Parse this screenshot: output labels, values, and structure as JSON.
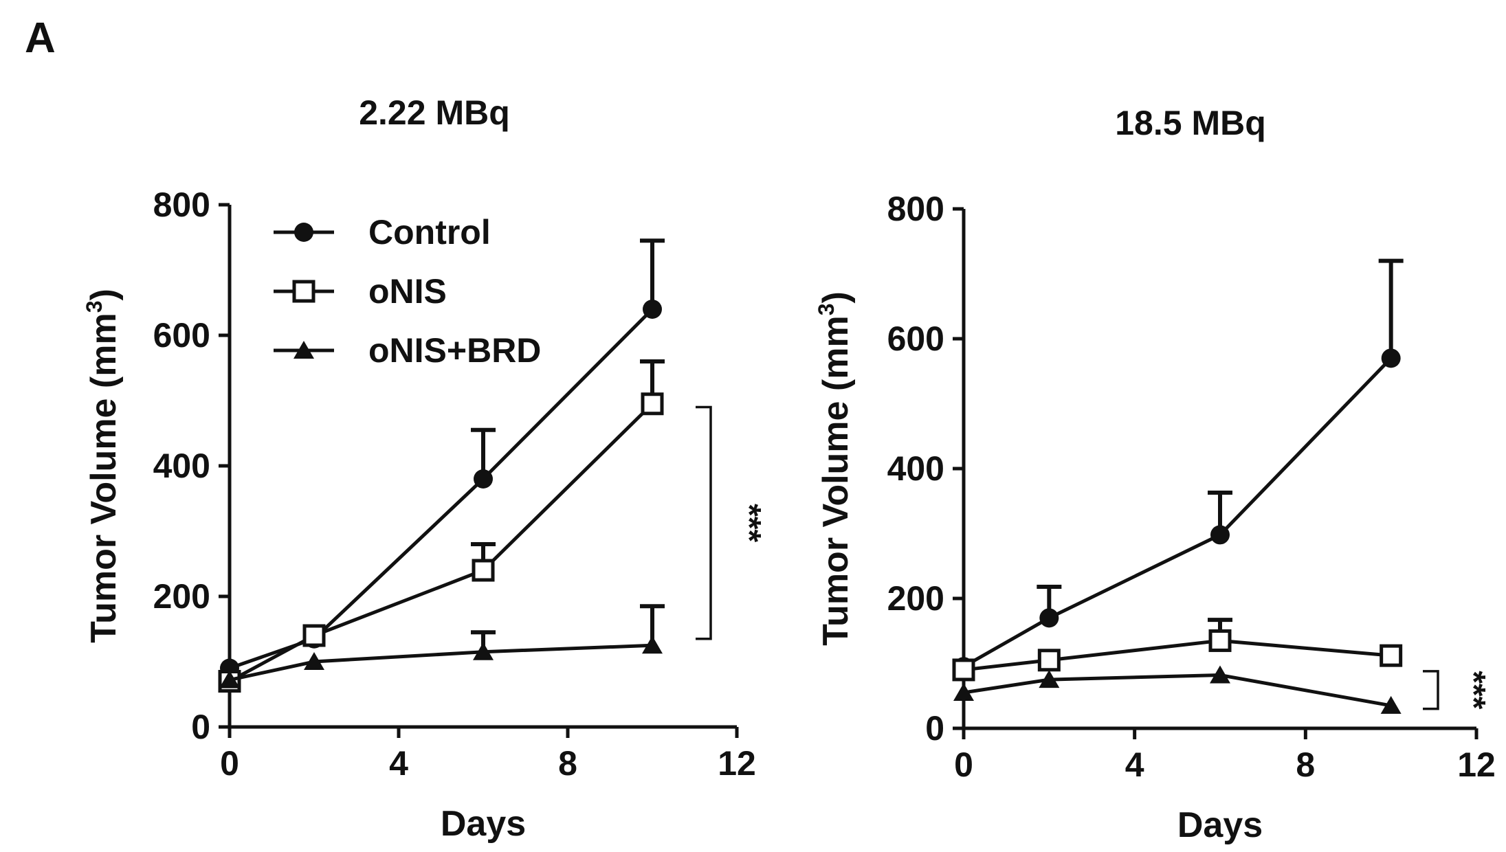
{
  "figure": {
    "panel_letter": "A"
  },
  "legend": {
    "entries": [
      {
        "label": "Control",
        "marker": "filled-circle"
      },
      {
        "label": "oNIS",
        "marker": "open-square"
      },
      {
        "label": "oNIS+BRD",
        "marker": "filled-triangle"
      }
    ]
  },
  "chart_data": [
    {
      "type": "line",
      "title": "2.22 MBq",
      "xlabel": "Days",
      "ylabel_main": "Tumor Volume (mm",
      "ylabel_sup": "3",
      "ylabel_close": ")",
      "xlim": [
        0,
        12
      ],
      "ylim": [
        0,
        800
      ],
      "xticks": [
        0,
        4,
        8,
        12
      ],
      "yticks": [
        0,
        200,
        400,
        600,
        800
      ],
      "x": [
        0,
        2,
        6,
        10
      ],
      "series": [
        {
          "name": "Control",
          "marker": "filled-circle",
          "values": [
            90,
            135,
            380,
            640
          ],
          "errors": [
            0,
            0,
            75,
            105
          ]
        },
        {
          "name": "oNIS",
          "marker": "open-square",
          "values": [
            70,
            140,
            240,
            495
          ],
          "errors": [
            0,
            0,
            40,
            65
          ]
        },
        {
          "name": "oNIS+BRD",
          "marker": "filled-triangle",
          "values": [
            72,
            100,
            115,
            125
          ],
          "errors": [
            0,
            0,
            30,
            60
          ]
        }
      ],
      "significance": {
        "label": "***",
        "y_range": [
          135,
          490
        ]
      }
    },
    {
      "type": "line",
      "title": "18.5 MBq",
      "xlabel": "Days",
      "ylabel_main": "Tumor Volume (mm",
      "ylabel_sup": "3",
      "ylabel_close": ")",
      "xlim": [
        0,
        12
      ],
      "ylim": [
        0,
        800
      ],
      "xticks": [
        0,
        4,
        8,
        12
      ],
      "yticks": [
        0,
        200,
        400,
        600,
        800
      ],
      "x": [
        0,
        2,
        6,
        10
      ],
      "series": [
        {
          "name": "Control",
          "marker": "filled-circle",
          "values": [
            95,
            170,
            298,
            570
          ],
          "errors": [
            0,
            48,
            65,
            150
          ]
        },
        {
          "name": "oNIS",
          "marker": "open-square",
          "values": [
            90,
            105,
            135,
            112
          ],
          "errors": [
            0,
            0,
            32,
            0
          ]
        },
        {
          "name": "oNIS+BRD",
          "marker": "filled-triangle",
          "values": [
            55,
            75,
            82,
            35
          ],
          "errors": [
            0,
            0,
            0,
            0
          ]
        }
      ],
      "significance": {
        "label": "***",
        "y_range": [
          30,
          88
        ]
      }
    }
  ]
}
